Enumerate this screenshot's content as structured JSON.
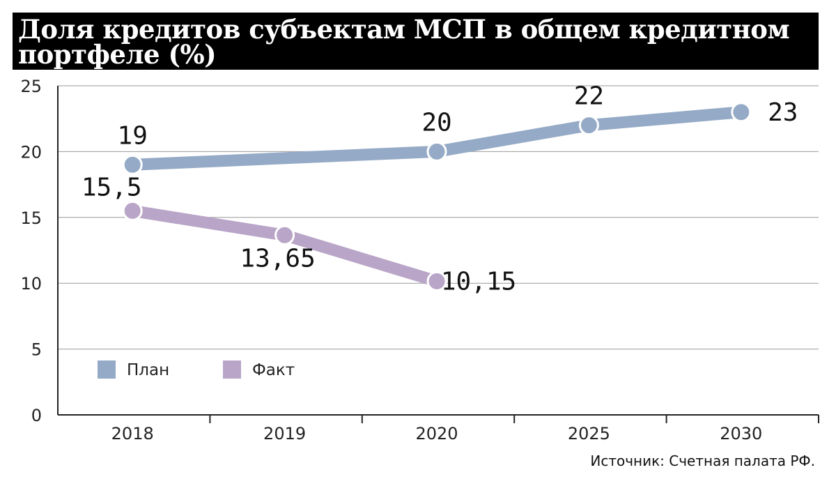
{
  "chart_data": {
    "type": "line",
    "title": "Доля кредитов субъектам МСП в общем кредитном портфеле (%)",
    "categories": [
      "2018",
      "2019",
      "2020",
      "2025",
      "2030"
    ],
    "ylim": [
      0,
      25
    ],
    "yticks": [
      "0",
      "5",
      "10",
      "15",
      "20",
      "25"
    ],
    "grid": true,
    "legend_position": "bottom-left",
    "series": [
      {
        "name": "План",
        "color": "#95aac6",
        "values": [
          19,
          null,
          20,
          22,
          23
        ],
        "labels": [
          "19",
          "",
          "20",
          "22",
          "23"
        ]
      },
      {
        "name": "Факт",
        "color": "#b9a5c7",
        "values": [
          15.5,
          13.65,
          10.15,
          null,
          null
        ],
        "labels": [
          "15,5",
          "13,65",
          "10,15",
          "",
          ""
        ]
      }
    ],
    "source": "Источник: Счетная палата РФ."
  }
}
